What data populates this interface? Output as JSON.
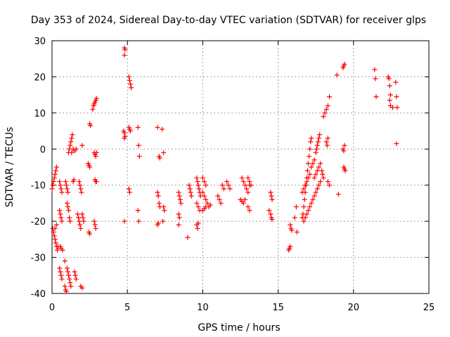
{
  "chart_data": {
    "type": "scatter",
    "title": "Day 353 of 2024, Sidereal Day-to-day VTEC variation (SDTVAR) for receiver glps",
    "xlabel": "GPS time / hours",
    "ylabel": "SDTVAR / TECUs",
    "xlim": [
      0,
      25
    ],
    "ylim": [
      -40,
      30
    ],
    "xticks": [
      0,
      5,
      10,
      15,
      20,
      25
    ],
    "yticks": [
      -40,
      -30,
      -20,
      -10,
      0,
      10,
      20,
      30
    ],
    "grid": true,
    "marker": "+",
    "color": "#ff0000",
    "series": [
      {
        "name": "SDTVAR",
        "points": [
          [
            0.0,
            -11
          ],
          [
            0.05,
            -10
          ],
          [
            0.1,
            -9
          ],
          [
            0.15,
            -8
          ],
          [
            0.2,
            -7
          ],
          [
            0.25,
            -6
          ],
          [
            0.3,
            -5
          ],
          [
            0.05,
            -22
          ],
          [
            0.1,
            -23
          ],
          [
            0.15,
            -24
          ],
          [
            0.2,
            -25
          ],
          [
            0.25,
            -26
          ],
          [
            0.3,
            -27
          ],
          [
            0.35,
            -28
          ],
          [
            0.4,
            -27
          ],
          [
            0.2,
            -22
          ],
          [
            0.3,
            -21
          ],
          [
            0.5,
            -9
          ],
          [
            0.55,
            -10
          ],
          [
            0.6,
            -11
          ],
          [
            0.65,
            -12
          ],
          [
            0.5,
            -17
          ],
          [
            0.55,
            -18
          ],
          [
            0.6,
            -19
          ],
          [
            0.65,
            -20
          ],
          [
            0.55,
            -27
          ],
          [
            0.6,
            -27.5
          ],
          [
            0.7,
            -28
          ],
          [
            0.5,
            -33
          ],
          [
            0.55,
            -34
          ],
          [
            0.6,
            -35
          ],
          [
            0.65,
            -36
          ],
          [
            0.85,
            -38
          ],
          [
            0.9,
            -39
          ],
          [
            0.95,
            -39.5
          ],
          [
            0.85,
            -31
          ],
          [
            0.9,
            -9
          ],
          [
            0.95,
            -10
          ],
          [
            1.0,
            -11
          ],
          [
            1.05,
            -12
          ],
          [
            1.0,
            -15
          ],
          [
            1.05,
            -16
          ],
          [
            1.1,
            -17
          ],
          [
            1.15,
            -19
          ],
          [
            1.2,
            -20
          ],
          [
            1.0,
            -33
          ],
          [
            1.05,
            -34
          ],
          [
            1.1,
            -35
          ],
          [
            1.15,
            -36
          ],
          [
            1.2,
            -37
          ],
          [
            1.25,
            -38
          ],
          [
            1.1,
            -1
          ],
          [
            1.15,
            0
          ],
          [
            1.2,
            1
          ],
          [
            1.25,
            2
          ],
          [
            1.3,
            3
          ],
          [
            1.35,
            4
          ],
          [
            1.3,
            -1
          ],
          [
            1.4,
            0
          ],
          [
            1.5,
            -0.5
          ],
          [
            1.6,
            0
          ],
          [
            1.4,
            -9
          ],
          [
            1.45,
            -8.5
          ],
          [
            1.5,
            -34
          ],
          [
            1.55,
            -35
          ],
          [
            1.6,
            -36
          ],
          [
            1.7,
            -18
          ],
          [
            1.75,
            -19
          ],
          [
            1.8,
            -20
          ],
          [
            1.85,
            -21
          ],
          [
            1.9,
            -22
          ],
          [
            1.8,
            -9
          ],
          [
            1.85,
            -10
          ],
          [
            1.9,
            -11
          ],
          [
            1.95,
            -12
          ],
          [
            2.0,
            -18
          ],
          [
            2.05,
            -19
          ],
          [
            2.1,
            -20
          ],
          [
            1.9,
            -38
          ],
          [
            2.0,
            -38.5
          ],
          [
            2.0,
            1
          ],
          [
            2.4,
            -4
          ],
          [
            2.45,
            -4.5
          ],
          [
            2.5,
            -5
          ],
          [
            2.45,
            -23
          ],
          [
            2.5,
            -23.5
          ],
          [
            2.5,
            7
          ],
          [
            2.55,
            6.5
          ],
          [
            2.7,
            11
          ],
          [
            2.75,
            12
          ],
          [
            2.8,
            12.5
          ],
          [
            2.85,
            13
          ],
          [
            2.9,
            13.5
          ],
          [
            2.95,
            14
          ],
          [
            2.8,
            -1
          ],
          [
            2.85,
            -1.5
          ],
          [
            2.9,
            -2
          ],
          [
            2.95,
            -1
          ],
          [
            2.8,
            -20
          ],
          [
            2.85,
            -21
          ],
          [
            2.9,
            -22
          ],
          [
            2.85,
            -8.5
          ],
          [
            2.9,
            -9
          ],
          [
            2.95,
            -9
          ],
          [
            4.8,
            28
          ],
          [
            4.85,
            27.5
          ],
          [
            4.8,
            26
          ],
          [
            4.75,
            5
          ],
          [
            4.8,
            4.5
          ],
          [
            4.85,
            3.5
          ],
          [
            4.8,
            3
          ],
          [
            4.8,
            -20
          ],
          [
            5.1,
            20
          ],
          [
            5.15,
            19
          ],
          [
            5.2,
            18
          ],
          [
            5.25,
            17
          ],
          [
            5.1,
            6
          ],
          [
            5.15,
            5.5
          ],
          [
            5.2,
            5
          ],
          [
            5.1,
            -11
          ],
          [
            5.15,
            -12
          ],
          [
            5.7,
            6
          ],
          [
            5.75,
            1
          ],
          [
            5.8,
            -2
          ],
          [
            5.7,
            -17
          ],
          [
            5.75,
            -20
          ],
          [
            7.0,
            6
          ],
          [
            7.1,
            -2
          ],
          [
            7.15,
            -2.5
          ],
          [
            7.3,
            5.5
          ],
          [
            7.4,
            -1
          ],
          [
            7.0,
            -12
          ],
          [
            7.05,
            -13
          ],
          [
            7.1,
            -15
          ],
          [
            7.15,
            -16
          ],
          [
            7.0,
            -21
          ],
          [
            7.05,
            -20.5
          ],
          [
            7.4,
            -16
          ],
          [
            7.45,
            -17
          ],
          [
            7.35,
            -20
          ],
          [
            8.4,
            -12
          ],
          [
            8.45,
            -13
          ],
          [
            8.5,
            -14
          ],
          [
            8.55,
            -15
          ],
          [
            8.4,
            -18
          ],
          [
            8.45,
            -19
          ],
          [
            8.4,
            -21
          ],
          [
            9.0,
            -24.5
          ],
          [
            9.1,
            -10
          ],
          [
            9.15,
            -11
          ],
          [
            9.2,
            -12
          ],
          [
            9.25,
            -13
          ],
          [
            9.6,
            -8
          ],
          [
            9.65,
            -9
          ],
          [
            9.7,
            -10
          ],
          [
            9.75,
            -11
          ],
          [
            9.8,
            -12
          ],
          [
            9.85,
            -13
          ],
          [
            9.6,
            -15
          ],
          [
            9.7,
            -16
          ],
          [
            9.8,
            -17
          ],
          [
            9.6,
            -21
          ],
          [
            9.65,
            -22
          ],
          [
            9.7,
            -20.5
          ],
          [
            10.0,
            -8
          ],
          [
            10.1,
            -9
          ],
          [
            10.2,
            -10
          ],
          [
            10.0,
            -12
          ],
          [
            10.1,
            -13
          ],
          [
            10.2,
            -14
          ],
          [
            10.3,
            -15
          ],
          [
            10.4,
            -16
          ],
          [
            10.5,
            -15.5
          ],
          [
            10.0,
            -17
          ],
          [
            10.1,
            -16.5
          ],
          [
            10.2,
            -16
          ],
          [
            11.0,
            -13
          ],
          [
            11.1,
            -14
          ],
          [
            11.2,
            -15
          ],
          [
            11.3,
            -10
          ],
          [
            11.4,
            -11
          ],
          [
            11.6,
            -9
          ],
          [
            11.7,
            -10
          ],
          [
            11.8,
            -11
          ],
          [
            12.6,
            -8
          ],
          [
            12.7,
            -9
          ],
          [
            12.8,
            -10
          ],
          [
            12.9,
            -11
          ],
          [
            13.0,
            -12
          ],
          [
            13.1,
            -10
          ],
          [
            12.5,
            -14
          ],
          [
            12.6,
            -14.5
          ],
          [
            12.7,
            -15
          ],
          [
            12.8,
            -14
          ],
          [
            13.0,
            -8
          ],
          [
            13.1,
            -9
          ],
          [
            13.2,
            -10
          ],
          [
            13.0,
            -16
          ],
          [
            13.1,
            -17
          ],
          [
            14.5,
            -12
          ],
          [
            14.55,
            -13
          ],
          [
            14.6,
            -14
          ],
          [
            14.4,
            -17
          ],
          [
            14.5,
            -18
          ],
          [
            14.55,
            -19
          ],
          [
            14.6,
            -19.5
          ],
          [
            15.7,
            -28
          ],
          [
            15.75,
            -27.5
          ],
          [
            15.8,
            -27
          ],
          [
            15.8,
            -21
          ],
          [
            15.85,
            -22
          ],
          [
            15.9,
            -22.5
          ],
          [
            16.1,
            -19
          ],
          [
            16.2,
            -16
          ],
          [
            16.25,
            -23
          ],
          [
            16.6,
            -19
          ],
          [
            16.65,
            -18
          ],
          [
            16.7,
            -16
          ],
          [
            16.75,
            -14
          ],
          [
            16.8,
            -12
          ],
          [
            16.85,
            -10
          ],
          [
            16.9,
            -8
          ],
          [
            16.95,
            -6
          ],
          [
            17.0,
            -4
          ],
          [
            17.05,
            -2
          ],
          [
            17.1,
            0
          ],
          [
            17.15,
            2
          ],
          [
            17.2,
            3
          ],
          [
            16.6,
            -12
          ],
          [
            16.7,
            -11
          ],
          [
            16.8,
            -10
          ],
          [
            16.9,
            -9
          ],
          [
            17.0,
            -8
          ],
          [
            17.1,
            -7
          ],
          [
            16.7,
            -20
          ],
          [
            16.8,
            -19
          ],
          [
            16.9,
            -18
          ],
          [
            17.0,
            -17
          ],
          [
            17.1,
            -16
          ],
          [
            17.2,
            -15
          ],
          [
            17.3,
            -14
          ],
          [
            17.4,
            -13
          ],
          [
            17.5,
            -12
          ],
          [
            17.6,
            -11
          ],
          [
            17.7,
            -10
          ],
          [
            17.8,
            -9
          ],
          [
            17.2,
            -5
          ],
          [
            17.3,
            -4
          ],
          [
            17.4,
            -3
          ],
          [
            17.5,
            -1
          ],
          [
            17.55,
            0
          ],
          [
            17.6,
            1
          ],
          [
            17.65,
            2
          ],
          [
            17.7,
            3
          ],
          [
            17.75,
            4
          ],
          [
            17.4,
            -8
          ],
          [
            17.5,
            -7
          ],
          [
            17.6,
            -6
          ],
          [
            17.7,
            -5
          ],
          [
            17.8,
            -4
          ],
          [
            17.9,
            -6
          ],
          [
            17.95,
            -7
          ],
          [
            18.0,
            -8
          ],
          [
            18.0,
            9
          ],
          [
            18.1,
            10
          ],
          [
            18.2,
            11
          ],
          [
            18.3,
            12
          ],
          [
            18.2,
            2
          ],
          [
            18.3,
            3
          ],
          [
            18.25,
            1
          ],
          [
            18.4,
            14.5
          ],
          [
            18.3,
            -9
          ],
          [
            18.4,
            -10
          ],
          [
            18.9,
            20.5
          ],
          [
            19.0,
            -12.5
          ],
          [
            19.3,
            22.5
          ],
          [
            19.35,
            23
          ],
          [
            19.4,
            23.5
          ],
          [
            19.3,
            0
          ],
          [
            19.35,
            -0.5
          ],
          [
            19.4,
            1
          ],
          [
            19.35,
            -5
          ],
          [
            19.4,
            -5.5
          ],
          [
            19.45,
            -6
          ],
          [
            21.4,
            22
          ],
          [
            21.45,
            19.5
          ],
          [
            21.5,
            14.5
          ],
          [
            22.3,
            20
          ],
          [
            22.35,
            19.5
          ],
          [
            22.4,
            17.5
          ],
          [
            22.45,
            15
          ],
          [
            22.4,
            13.5
          ],
          [
            22.45,
            12
          ],
          [
            22.6,
            11.5
          ],
          [
            22.8,
            18.5
          ],
          [
            22.85,
            14.5
          ],
          [
            22.9,
            11.5
          ],
          [
            22.85,
            1.5
          ]
        ]
      }
    ]
  }
}
